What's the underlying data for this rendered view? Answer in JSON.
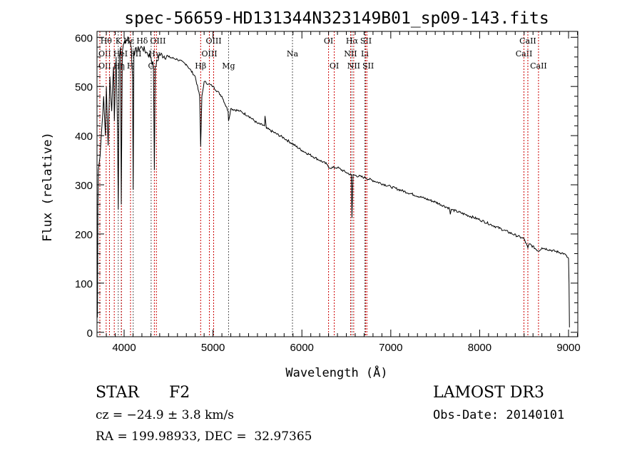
{
  "chart_data": {
    "type": "line",
    "title": "spec-56659-HD131344N323149B01_sp09-143.fits",
    "xlabel": "Wavelength (Å)",
    "ylabel": "Flux (relative)",
    "xlim": [
      3695,
      9104
    ],
    "ylim": [
      -9,
      612
    ],
    "xticks": [
      4000,
      5000,
      6000,
      7000,
      8000,
      9000
    ],
    "yticks": [
      0,
      100,
      200,
      300,
      400,
      500,
      600
    ],
    "grid": false,
    "series": [
      {
        "name": "spectrum",
        "color": "#000000",
        "x": [
          3700,
          3705,
          3710,
          3730,
          3750,
          3770,
          3790,
          3800,
          3820,
          3840,
          3860,
          3880,
          3890,
          3910,
          3925,
          3934,
          3945,
          3960,
          3968,
          3980,
          4000,
          4050,
          4080,
          4095,
          4102,
          4110,
          4200,
          4250,
          4300,
          4330,
          4340,
          4350,
          4400,
          4500,
          4600,
          4700,
          4800,
          4850,
          4861,
          4875,
          4900,
          4950,
          5000,
          5100,
          5170,
          5175,
          5200,
          5300,
          5400,
          5500,
          5580,
          5585,
          5600,
          5800,
          6000,
          6200,
          6280,
          6300,
          6400,
          6500,
          6555,
          6563,
          6575,
          6700,
          7000,
          7500,
          7660,
          7670,
          7680,
          8000,
          8500,
          8542,
          8560,
          8662,
          8700,
          8950,
          9000,
          9005,
          9010
        ],
        "y": [
          30,
          250,
          330,
          360,
          420,
          480,
          400,
          500,
          380,
          520,
          450,
          540,
          430,
          560,
          420,
          250,
          560,
          580,
          260,
          570,
          590,
          600,
          580,
          520,
          290,
          570,
          580,
          570,
          560,
          540,
          330,
          540,
          565,
          560,
          555,
          545,
          520,
          480,
          378,
          480,
          510,
          505,
          500,
          480,
          450,
          430,
          455,
          450,
          440,
          425,
          420,
          440,
          415,
          395,
          370,
          350,
          342,
          335,
          335,
          325,
          320,
          233,
          320,
          315,
          296,
          265,
          252,
          240,
          250,
          229,
          190,
          172,
          180,
          165,
          172,
          160,
          150,
          100,
          10
        ]
      }
    ],
    "line_markers": [
      {
        "wl": 3727,
        "label": "OII",
        "row": 3,
        "color": "#cc0000"
      },
      {
        "wl": 3727,
        "label": "OII",
        "row": 2,
        "color": "#cc0000"
      },
      {
        "wl": 3798,
        "label": "Hθ",
        "row": 1,
        "color": "#cc0000"
      },
      {
        "wl": 3835,
        "label": "Hη",
        "row": 3,
        "color": "#cc0000"
      },
      {
        "wl": 3889,
        "label": "HeI",
        "row": 2,
        "color": "#cc0000"
      },
      {
        "wl": 3934,
        "label": "K",
        "row": 1,
        "color": "#555555"
      },
      {
        "wl": 3968,
        "label": "H",
        "row": 3,
        "color": "#555555"
      },
      {
        "wl": 3970,
        "label": "Hε",
        "row": 1,
        "color": "#cc0000"
      },
      {
        "wl": 4072,
        "label": "SII",
        "row": 2,
        "color": "#cc0000"
      },
      {
        "wl": 4102,
        "label": "Hδ",
        "row": 1,
        "color": "#555555"
      },
      {
        "wl": 4304,
        "label": "G",
        "row": 3,
        "color": "#555555"
      },
      {
        "wl": 4340,
        "label": "Hγ",
        "row": 2,
        "color": "#cc0000"
      },
      {
        "wl": 4363,
        "label": "OIII",
        "row": 1,
        "color": "#cc0000"
      },
      {
        "wl": 4861,
        "label": "Hβ",
        "row": 3,
        "color": "#cc0000"
      },
      {
        "wl": 4959,
        "label": "OIII",
        "row": 2,
        "color": "#cc0000"
      },
      {
        "wl": 5007,
        "label": "OIII",
        "row": 1,
        "color": "#cc0000"
      },
      {
        "wl": 5175,
        "label": "Mg",
        "row": 3,
        "color": "#555555"
      },
      {
        "wl": 5894,
        "label": "Na",
        "row": 2,
        "color": "#555555"
      },
      {
        "wl": 6300,
        "label": "OI",
        "row": 1,
        "color": "#cc0000"
      },
      {
        "wl": 6364,
        "label": "OI",
        "row": 3,
        "color": "#cc0000"
      },
      {
        "wl": 6548,
        "label": "NII",
        "row": 2,
        "color": "#cc0000"
      },
      {
        "wl": 6563,
        "label": "Hα",
        "row": 1,
        "color": "#555555"
      },
      {
        "wl": 6583,
        "label": "NII",
        "row": 3,
        "color": "#cc0000"
      },
      {
        "wl": 6708,
        "label": "Li",
        "row": 2,
        "color": "#555555"
      },
      {
        "wl": 6717,
        "label": "SII",
        "row": 1,
        "color": "#cc0000"
      },
      {
        "wl": 6731,
        "label": "SII",
        "row": 3,
        "color": "#cc0000"
      },
      {
        "wl": 8498,
        "label": "CaII",
        "row": 2,
        "color": "#cc0000"
      },
      {
        "wl": 8542,
        "label": "CaII",
        "row": 1,
        "color": "#cc0000"
      },
      {
        "wl": 8662,
        "label": "CaII",
        "row": 3,
        "color": "#cc0000"
      }
    ]
  },
  "info": {
    "class": "STAR",
    "subclass": "F2",
    "cz": "cz = −24.9 ± 3.8 km/s",
    "coords": "RA = 199.98933, DEC =  32.97365",
    "survey": "LAMOST DR3",
    "obs_date": "Obs-Date: 20140101"
  }
}
